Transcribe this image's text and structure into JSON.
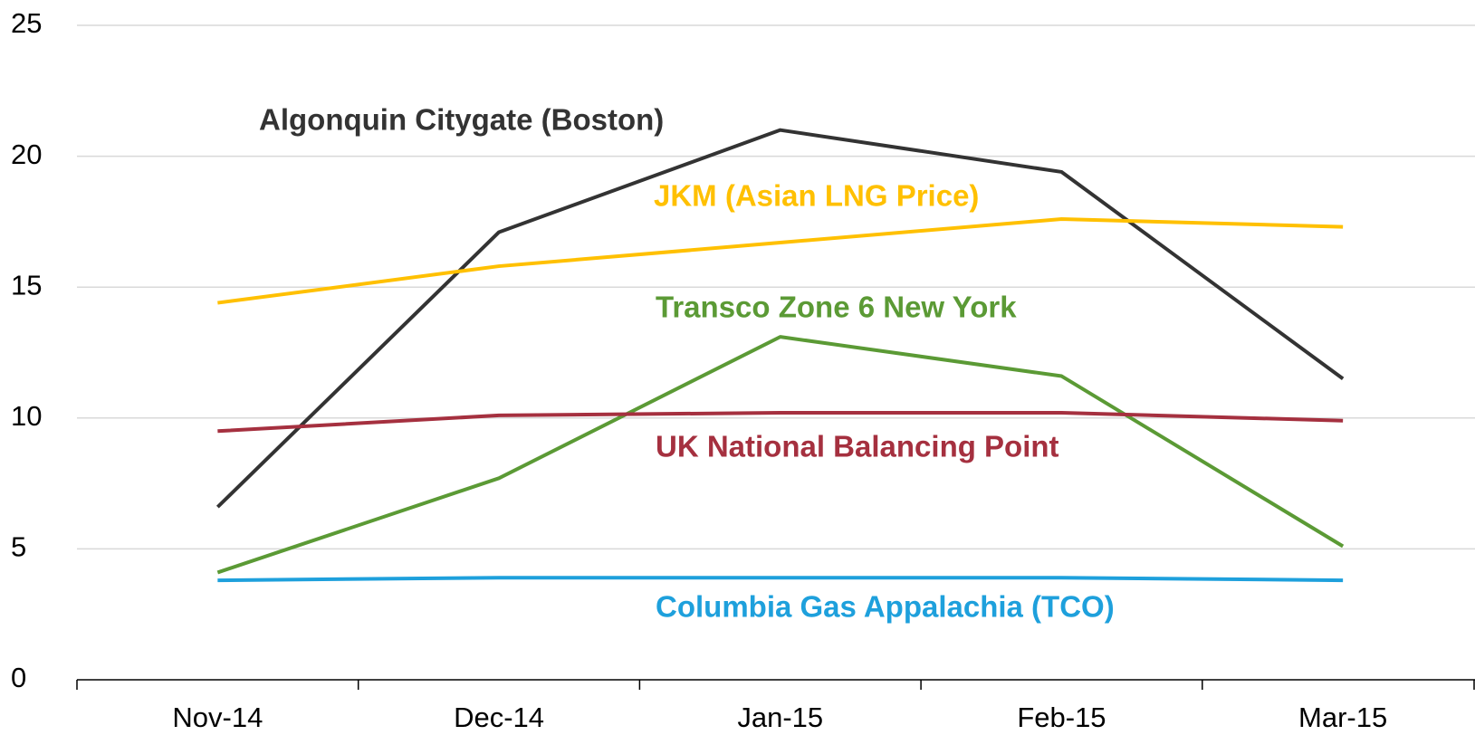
{
  "chart_data": {
    "type": "line",
    "categories": [
      "Nov-14",
      "Dec-14",
      "Jan-15",
      "Feb-15",
      "Mar-15"
    ],
    "series": [
      {
        "name": "Algonquin Citygate (Boston)",
        "color": "#333333",
        "values": [
          6.6,
          17.1,
          21.0,
          19.4,
          11.5
        ]
      },
      {
        "name": "JKM (Asian LNG Price)",
        "color": "#ffc000",
        "values": [
          14.4,
          15.8,
          16.7,
          17.6,
          17.3
        ]
      },
      {
        "name": "Transco Zone 6 New York",
        "color": "#5b9a35",
        "values": [
          4.1,
          7.7,
          13.1,
          11.6,
          5.1
        ]
      },
      {
        "name": "UK National Balancing Point",
        "color": "#a5303f",
        "values": [
          9.5,
          10.1,
          10.2,
          10.2,
          9.9
        ]
      },
      {
        "name": "Columbia Gas Appalachia (TCO)",
        "color": "#1ea0dc",
        "values": [
          3.8,
          3.9,
          3.9,
          3.9,
          3.8
        ]
      }
    ],
    "ylim": [
      0,
      25
    ],
    "yticks": [
      0,
      5,
      10,
      15,
      20,
      25
    ],
    "grid": true
  }
}
